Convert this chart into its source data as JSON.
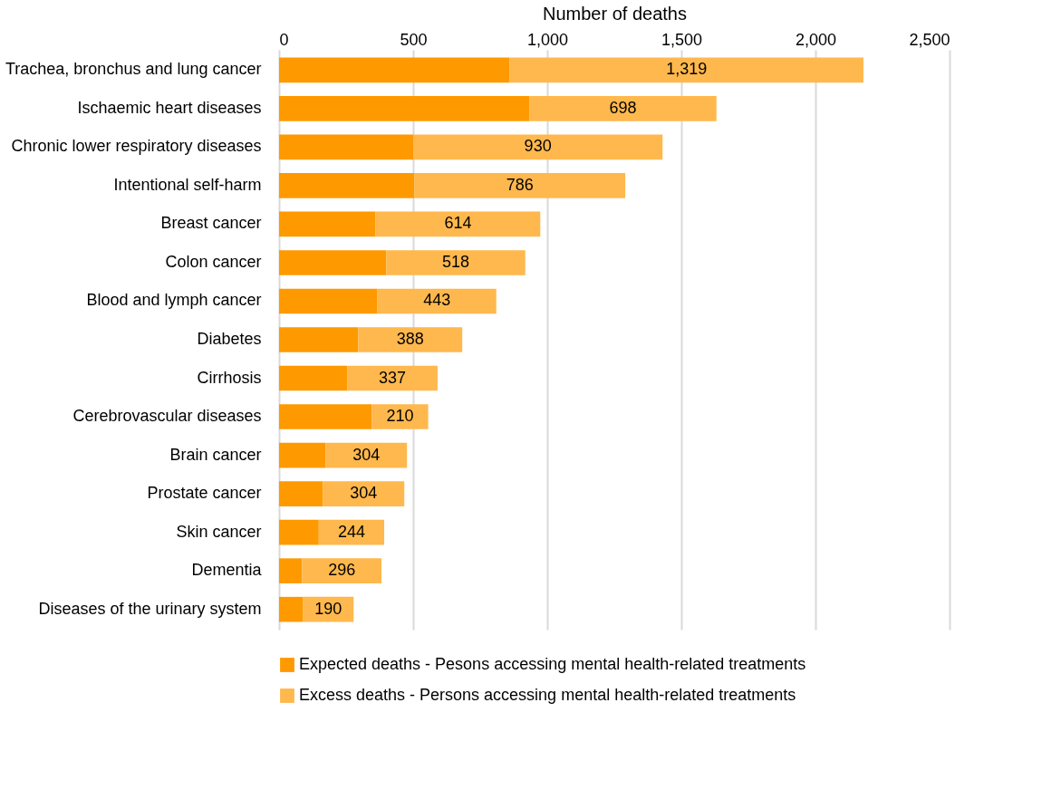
{
  "chart_data": {
    "type": "bar",
    "orientation": "horizontal",
    "stacked": true,
    "xlabel": "Number of deaths",
    "categories": [
      "Trachea, bronchus and lung cancer",
      "Ischaemic heart diseases",
      "Chronic lower respiratory diseases",
      "Intentional self-harm",
      "Breast cancer",
      "Colon cancer",
      "Blood and lymph cancer",
      "Diabetes",
      "Cirrhosis ",
      "Cerebrovascular diseases",
      "Brain cancer",
      "Prostate cancer",
      "Skin cancer",
      "Dementia",
      "Diseases of the urinary system"
    ],
    "series": [
      {
        "name": "Expected deaths - Pesons accessing mental health-related treatments",
        "color": "#ff9900",
        "values": [
          860,
          933,
          500,
          505,
          360,
          400,
          367,
          295,
          254,
          346,
          173,
          163,
          148,
          86,
          88
        ]
      },
      {
        "name": "Excess deaths - Persons accessing mental health-related treatments",
        "color": "#ffb84d",
        "values": [
          1319,
          698,
          930,
          786,
          614,
          518,
          443,
          388,
          337,
          210,
          304,
          304,
          244,
          296,
          190
        ],
        "value_labels": [
          "1,319",
          "698",
          "930",
          "786",
          "614",
          "518",
          "443",
          "388",
          "337",
          "210",
          "304",
          "304",
          "244",
          "296",
          "190"
        ]
      }
    ],
    "xlim": [
      0,
      2500
    ],
    "xticks": [
      0,
      500,
      {
        "value": 1000,
        "label": "1,000"
      },
      {
        "value": 1500,
        "label": "1,500"
      },
      {
        "value": 2000,
        "label": "2,000"
      },
      {
        "value": 2500,
        "label": "2,500"
      }
    ],
    "grid": "x",
    "legend": "bottom"
  }
}
